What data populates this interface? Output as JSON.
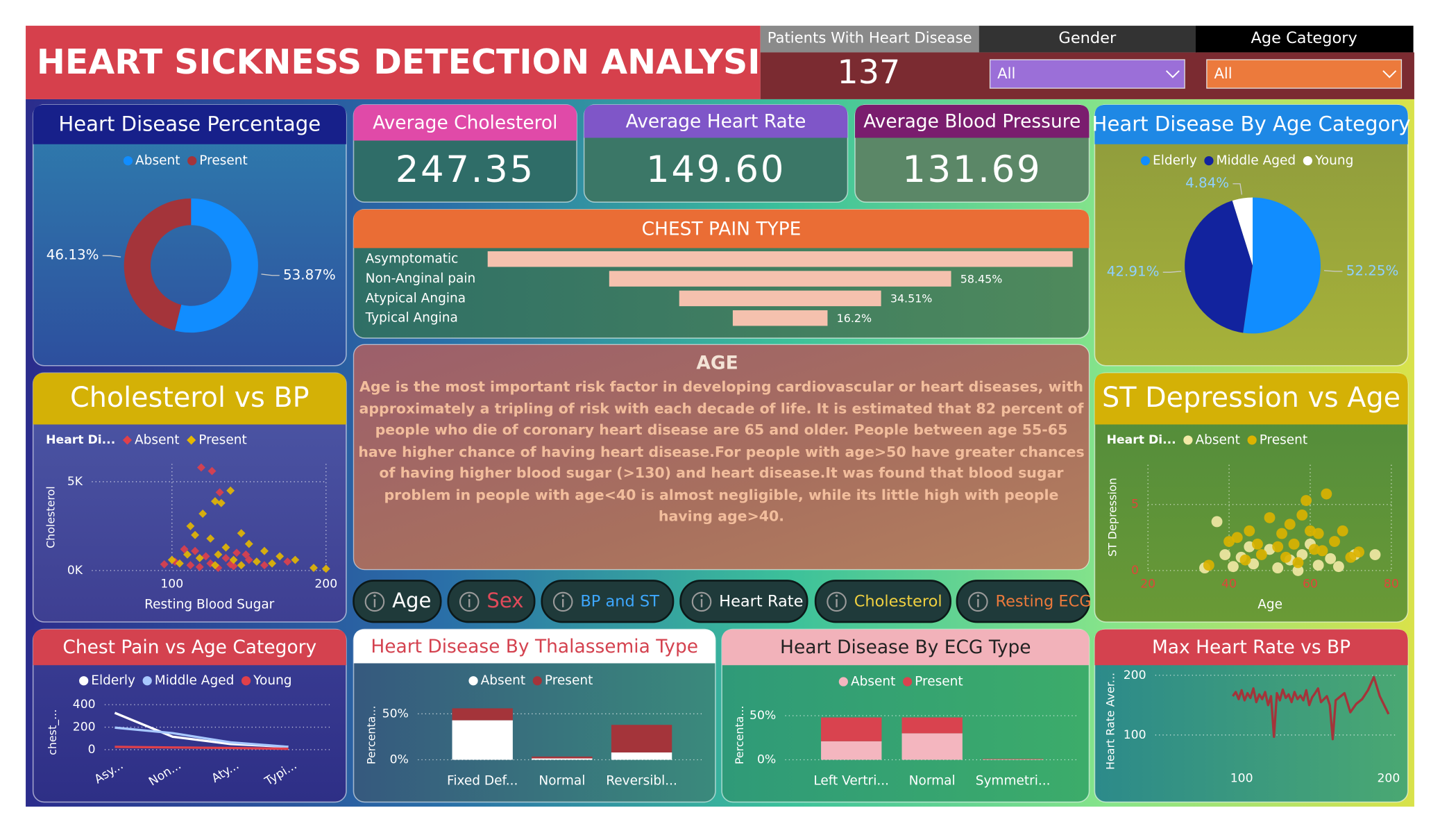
{
  "header": {
    "title": "HEART SICKNESS DETECTION ANALYSIS"
  },
  "kpis": [
    {
      "label": "Patients With Heart Disease",
      "value": 137
    },
    {
      "label": "Average Cholesterol",
      "value": 247.35
    },
    {
      "label": "Average Heart Rate",
      "value": 149.6,
      "value_label": "149.60"
    },
    {
      "label": "Average Blood Pressure",
      "value": 131.69
    }
  ],
  "filters": [
    {
      "label": "Gender",
      "selected": "All"
    },
    {
      "label": "Age Category",
      "selected": "All"
    }
  ],
  "buttons": [
    "Age",
    "Sex",
    "BP and ST",
    "Heart Rate",
    "Cholesterol",
    "Resting ECG"
  ],
  "info": {
    "title": "AGE",
    "text": "Age is the most important risk factor in developing cardiovascular or heart diseases, with approximately a tripling of risk with each decade of life. It is estimated that 82 percent of people who die of coronary heart disease are 65 and older. People between age 55-65 have higher chance of having heart disease.For people with age>50 have greater chances of having higher blood sugar (>130) and heart disease.It was found that blood sugar problem in people with age<40 is almost negligible, while its little high with people having age>40."
  },
  "chart_data": [
    {
      "type": "donut",
      "title": "Heart Disease Percentage",
      "categories": [
        "Absent",
        "Present"
      ],
      "values": [
        53.87,
        46.13
      ],
      "value_labels": [
        "53.87%",
        "46.13%"
      ],
      "colors": [
        "#118dff",
        "#a4343a"
      ]
    },
    {
      "type": "funnel",
      "title": "CHEST PAIN TYPE",
      "categories": [
        "Asymptomatic",
        "Non-Anginal pain",
        "Atypical Angina",
        "Typical Angina"
      ],
      "values": [
        100,
        58.45,
        34.51,
        16.2
      ],
      "value_labels": [
        null,
        "58.45%",
        "34.51%",
        "16.2%"
      ],
      "color": "#f5c1ae"
    },
    {
      "type": "pie",
      "title": "Heart Disease By Age Category",
      "categories": [
        "Elderly",
        "Middle Aged",
        "Young"
      ],
      "values": [
        52.25,
        42.91,
        4.84
      ],
      "value_labels": [
        "52.25%",
        "42.91%",
        "4.84%"
      ],
      "colors": [
        "#118dff",
        "#12239e",
        "#ffffff"
      ]
    },
    {
      "type": "scatter",
      "title": "Cholesterol vs BP",
      "legend_title": "Heart Di...",
      "x_label": "Resting Blood Sugar",
      "y_label": "Cholesterol",
      "marker": "diamond",
      "xlim": [
        48,
        200
      ],
      "xticks": [
        100,
        200
      ],
      "ylim": [
        0,
        6000
      ],
      "yticks": [
        {
          "value": 0,
          "label": "0K"
        },
        {
          "value": 5000,
          "label": "5K"
        }
      ],
      "grid": true,
      "xgrid": true,
      "series": [
        {
          "name": "Absent",
          "color": "#e0404a",
          "x": [
            119,
            126,
            131,
            108,
            115,
            122,
            135,
            142,
            148,
            102,
            95,
            112,
            125,
            138,
            150,
            160,
            175,
            130,
            118,
            140
          ],
          "y": [
            5800,
            5600,
            4400,
            1200,
            1100,
            800,
            700,
            1000,
            900,
            500,
            350,
            300,
            400,
            350,
            600,
            300,
            500,
            150,
            200,
            250
          ]
        },
        {
          "name": "Present",
          "color": "#e6b800",
          "x": [
            120,
            128,
            132,
            138,
            112,
            145,
            115,
            125,
            135,
            150,
            160,
            110,
            118,
            130,
            140,
            155,
            170,
            180,
            128,
            105,
            192,
            200,
            145,
            165,
            100
          ],
          "y": [
            3200,
            3900,
            3800,
            4500,
            2500,
            2100,
            2000,
            1800,
            1300,
            1500,
            1100,
            900,
            700,
            900,
            600,
            500,
            800,
            600,
            300,
            400,
            150,
            100,
            300,
            400,
            600
          ]
        }
      ]
    },
    {
      "type": "scatter",
      "title": "ST Depression vs Age",
      "legend_title": "Heart Di...",
      "x_label": "Age",
      "y_label": "ST Depression",
      "marker": "circle",
      "xlim": [
        20,
        80
      ],
      "xticks": [
        20,
        40,
        60,
        80
      ],
      "ylim": [
        0,
        8
      ],
      "yticks": [
        0,
        5
      ],
      "grid": true,
      "xgrid": true,
      "series": [
        {
          "name": "Absent",
          "color": "#f3e9a6",
          "x": [
            37,
            43,
            46,
            50,
            52,
            55,
            58,
            62,
            41,
            39,
            65,
            71,
            76,
            67,
            34,
            45,
            60,
            57
          ],
          "y": [
            3.7,
            1.0,
            0.5,
            1.6,
            0.2,
            0.8,
            1.2,
            0.4,
            0.3,
            1.2,
            0.9,
            1.2,
            1.2,
            0.3,
            0.2,
            1.8,
            2.0,
            0
          ]
        },
        {
          "name": "Present",
          "color": "#dcb300",
          "x": [
            42,
            45,
            50,
            55,
            58,
            60,
            62,
            64,
            59,
            52,
            48,
            56,
            63,
            66,
            70,
            68,
            54,
            57,
            61,
            44,
            40,
            35,
            72,
            47,
            53
          ],
          "y": [
            2.5,
            3,
            4,
            3.5,
            4.2,
            3,
            2.8,
            5.8,
            5.3,
            1.8,
            1.2,
            2.0,
            1.5,
            2.2,
            1.0,
            3.0,
            1.0,
            0.6,
            1.6,
            0.8,
            2.2,
            0.4,
            1.4,
            2.0,
            2.8
          ]
        }
      ]
    },
    {
      "type": "line",
      "title": "Chest Pain vs Age Category",
      "y_label": "chest_...",
      "categories": [
        "Asy...",
        "Non...",
        "Aty...",
        "Typi..."
      ],
      "ylim": [
        0,
        400
      ],
      "yticks": [
        0,
        200,
        400
      ],
      "grid": true,
      "series": [
        {
          "name": "Elderly",
          "color": "#ffffff",
          "values": [
            327,
            115,
            50,
            25
          ]
        },
        {
          "name": "Middle Aged",
          "color": "#a8c8ff",
          "values": [
            196,
            147,
            65,
            25
          ]
        },
        {
          "name": "Young",
          "color": "#e0404a",
          "values": [
            25,
            20,
            15,
            8
          ]
        }
      ]
    },
    {
      "type": "stacked_bar",
      "title": "Heart Disease By Thalassemia Type",
      "y_label": "Percenta...",
      "categories": [
        "Fixed Def...",
        "Normal",
        "Reversibl..."
      ],
      "ylim": [
        0,
        60
      ],
      "yticks": [
        {
          "value": 0,
          "label": "0%"
        },
        {
          "value": 50,
          "label": "50%"
        }
      ],
      "grid": true,
      "series": [
        {
          "name": "Absent",
          "color": "#ffffff",
          "values": [
            43,
            1.5,
            8
          ]
        },
        {
          "name": "Present",
          "color": "#a4343a",
          "values": [
            13,
            2,
            30
          ]
        }
      ]
    },
    {
      "type": "stacked_bar",
      "title": "Heart Disease By ECG Type",
      "y_label": "Percenta...",
      "categories": [
        "Left Vertri...",
        "Normal",
        "Symmetri..."
      ],
      "ylim": [
        0,
        60
      ],
      "yticks": [
        {
          "value": 0,
          "label": "0%"
        },
        {
          "value": 50,
          "label": "50%"
        }
      ],
      "grid": true,
      "series": [
        {
          "name": "Absent",
          "color": "#f4b6bf",
          "values": [
            21,
            30,
            0.5
          ]
        },
        {
          "name": "Present",
          "color": "#d9434f",
          "values": [
            27,
            18,
            0.5
          ]
        }
      ]
    },
    {
      "type": "line",
      "title": "Max Heart Rate vs BP",
      "y_label": "Heart Rate Aver...",
      "color": "#a4343a",
      "xlim": [
        90,
        205
      ],
      "xticks": [
        100,
        200
      ],
      "ylim": [
        50,
        210
      ],
      "yticks": [
        100,
        200
      ],
      "grid": true,
      "x": [
        94,
        96,
        98,
        100,
        102,
        104,
        106,
        108,
        110,
        112,
        114,
        116,
        118,
        120,
        122,
        124,
        126,
        128,
        130,
        132,
        134,
        136,
        138,
        140,
        142,
        144,
        146,
        148,
        150,
        152,
        154,
        156,
        158,
        160,
        162,
        164,
        166,
        170,
        174,
        178,
        182,
        186,
        190,
        194,
        200
      ],
      "values": [
        165,
        172,
        160,
        175,
        158,
        170,
        162,
        178,
        155,
        168,
        160,
        172,
        150,
        165,
        97,
        170,
        158,
        176,
        162,
        168,
        155,
        172,
        160,
        166,
        158,
        175,
        150,
        163,
        170,
        178,
        155,
        160,
        165,
        150,
        93,
        158,
        162,
        170,
        138,
        152,
        160,
        175,
        197,
        165,
        135
      ]
    }
  ]
}
